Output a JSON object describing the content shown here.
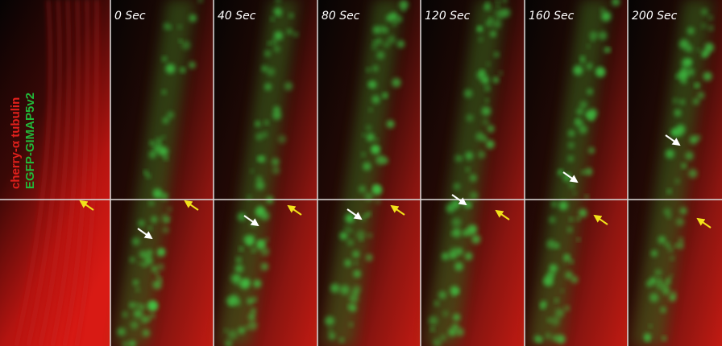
{
  "stain_labels": [
    {
      "text": "cherry-α tubulin",
      "color": "#e0201c"
    },
    {
      "text": "EGFP-GIMAP5v2",
      "color": "#22b83a"
    }
  ],
  "panels": [
    {
      "label": "0 Sec"
    },
    {
      "label": "40 Sec"
    },
    {
      "label": "80 Sec"
    },
    {
      "label": "120 Sec"
    },
    {
      "label": "160 Sec"
    },
    {
      "label": "200 Sec"
    }
  ]
}
